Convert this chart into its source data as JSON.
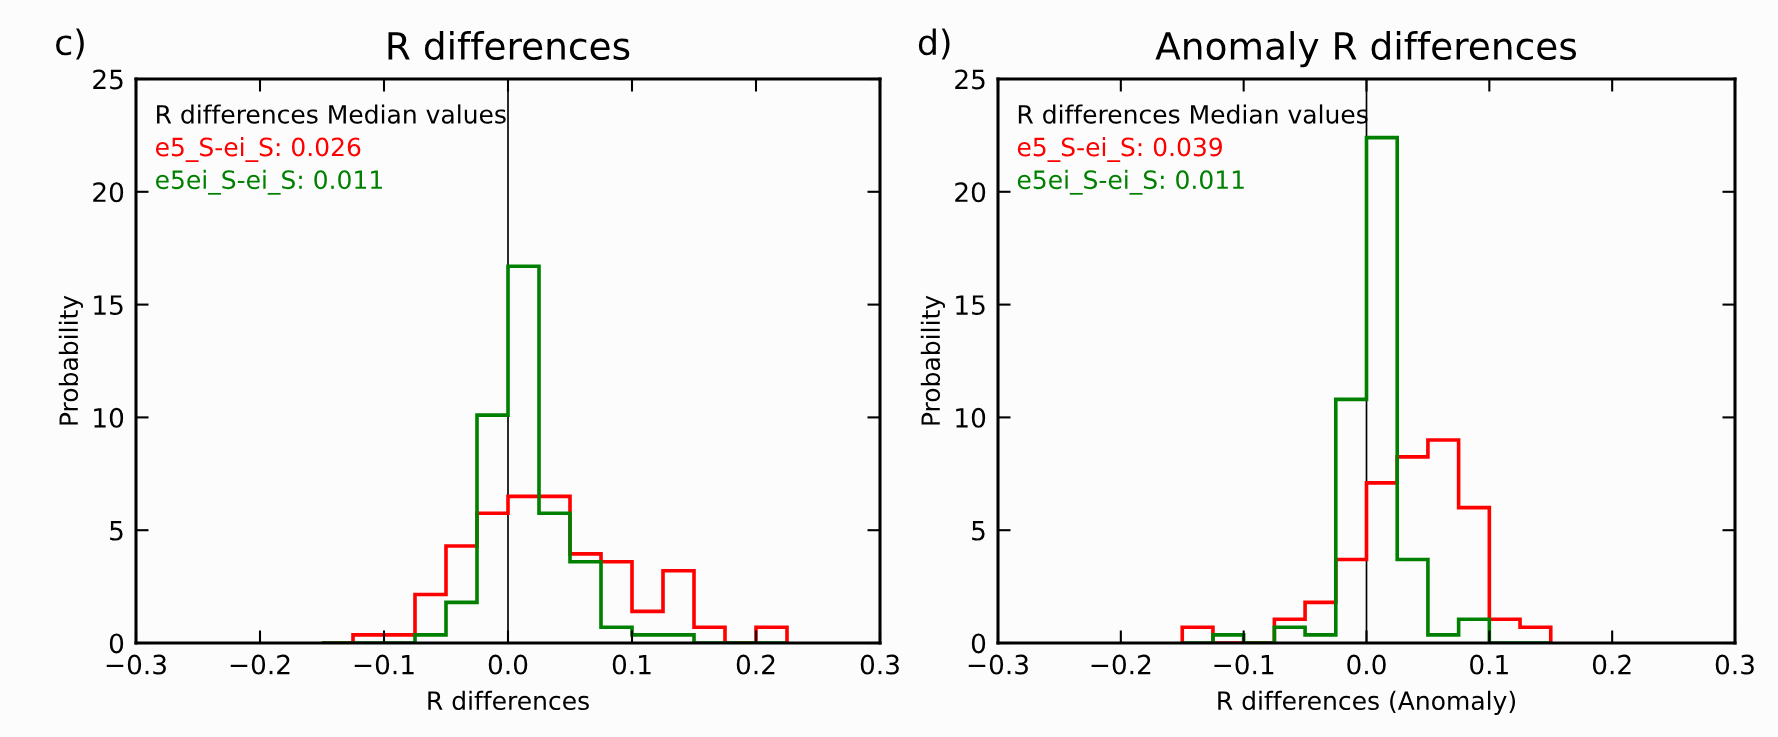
{
  "chart_data": [
    {
      "type": "histogram",
      "title": "R differences",
      "xlabel": "R differences",
      "ylabel": "Probability",
      "legend_title": "R differences Median values",
      "annotations": [
        "c)"
      ],
      "bins": [
        -0.15,
        -0.125,
        -0.1,
        -0.075,
        -0.05,
        -0.025,
        0,
        0.025,
        0.05,
        0.075,
        0.1,
        0.125,
        0.15,
        0.175,
        0.2,
        0.225
      ],
      "series": [
        {
          "name": "e5_S-ei_S: 0.026",
          "color": "#ff0000",
          "values": [
            0,
            0.36,
            0.36,
            2.15,
            4.3,
            5.75,
            6.5,
            6.5,
            3.95,
            3.6,
            1.4,
            3.2,
            0.7,
            0,
            0.7
          ]
        },
        {
          "name": "e5ei_S-ei_S: 0.011",
          "color": "#008000",
          "values": [
            0,
            0,
            0,
            0.36,
            1.8,
            10.1,
            16.7,
            5.75,
            3.6,
            0.7,
            0.36,
            0.36,
            0,
            0,
            0
          ]
        }
      ],
      "xlim": [
        -0.3,
        0.3
      ],
      "ylim": [
        0,
        25
      ],
      "xticks": [
        {
          "value": -0.3,
          "label": "−0.3"
        },
        {
          "value": -0.2,
          "label": "−0.2"
        },
        {
          "value": -0.1,
          "label": "−0.1"
        },
        {
          "value": 0,
          "label": "0.0"
        },
        {
          "value": 0.1,
          "label": "0.1"
        },
        {
          "value": 0.2,
          "label": "0.2"
        },
        {
          "value": 0.3,
          "label": "0.3"
        }
      ],
      "yticks": [
        0,
        5,
        10,
        15,
        20,
        25
      ],
      "ref_lines": [
        {
          "axis": "x",
          "value": 0,
          "color": "#000000"
        }
      ]
    },
    {
      "type": "histogram",
      "title": "Anomaly R differences",
      "xlabel": "R differences (Anomaly)",
      "ylabel": "Probability",
      "legend_title": "R differences Median values",
      "annotations": [
        "d)"
      ],
      "bins": [
        -0.15,
        -0.125,
        -0.1,
        -0.075,
        -0.05,
        -0.025,
        0,
        0.025,
        0.05,
        0.075,
        0.1,
        0.125,
        0.15
      ],
      "series": [
        {
          "name": "e5_S-ei_S: 0.039",
          "color": "#ff0000",
          "values": [
            0.7,
            0,
            0,
            1.05,
            1.8,
            3.7,
            7.1,
            8.25,
            9.0,
            6.0,
            1.05,
            0.7
          ]
        },
        {
          "name": "e5ei_S-ei_S: 0.011",
          "color": "#008000",
          "values": [
            0,
            0.36,
            0,
            0.7,
            0.36,
            10.8,
            22.4,
            3.7,
            0.36,
            1.05,
            0,
            0
          ]
        }
      ],
      "xlim": [
        -0.3,
        0.3
      ],
      "ylim": [
        0,
        25
      ],
      "xticks": [
        {
          "value": -0.3,
          "label": "−0.3"
        },
        {
          "value": -0.2,
          "label": "−0.2"
        },
        {
          "value": -0.1,
          "label": "−0.1"
        },
        {
          "value": 0,
          "label": "0.0"
        },
        {
          "value": 0.1,
          "label": "0.1"
        },
        {
          "value": 0.2,
          "label": "0.2"
        },
        {
          "value": 0.3,
          "label": "0.3"
        }
      ],
      "yticks": [
        0,
        5,
        10,
        15,
        20,
        25
      ],
      "ref_lines": [
        {
          "axis": "x",
          "value": 0,
          "color": "#000000"
        }
      ]
    }
  ]
}
